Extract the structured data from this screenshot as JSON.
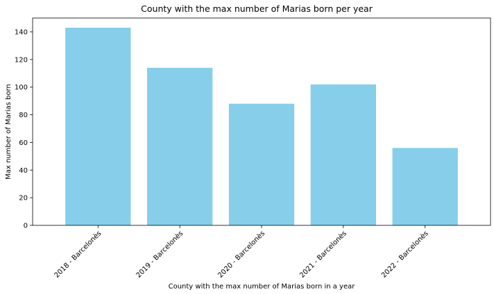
{
  "chart_data": {
    "type": "bar",
    "title": "County with the max number of Marias born per year",
    "xlabel": "County with the max number of Marias born in a year",
    "ylabel": "Max number of Marias born",
    "categories": [
      "2018 - Barcelonès",
      "2019 - Barcelonès",
      "2020 - Barcelonès",
      "2021 - Barcelonès",
      "2022 - Barcelonès"
    ],
    "values": [
      143,
      114,
      88,
      102,
      56
    ],
    "ylim": [
      0,
      150
    ],
    "yticks": [
      0,
      20,
      40,
      60,
      80,
      100,
      120,
      140
    ],
    "bar_color": "#87ceeb",
    "grid": false,
    "legend": "none"
  }
}
